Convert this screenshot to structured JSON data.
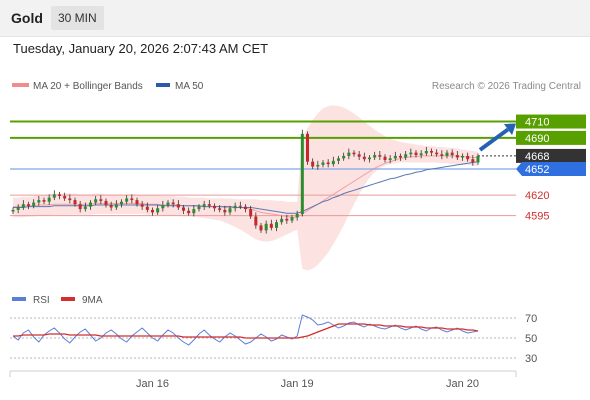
{
  "header": {
    "title": "Gold",
    "timeframe": "30 MIN"
  },
  "timestamp": "Tuesday, January 20, 2026 2:07:43 AM CET",
  "legend": {
    "ma20": "MA 20 + Bollinger Bands",
    "ma50": "MA 50",
    "credit": "Research © 2026 Trading Central",
    "rsi": "RSI",
    "ma9": "9MA"
  },
  "colors": {
    "resistance": "#57a000",
    "support": "#2f6fe0",
    "sub_level": "#d32f2f",
    "price_tag": "#333333",
    "candle_up": "#2e8b2e",
    "candle_down": "#c62828",
    "bollinger": "#fde2e2",
    "ma50": "#5a78b5",
    "rsi": "#5b7fd6",
    "ma9": "#d32f2f",
    "arrow": "#2563b0"
  },
  "chart_data": [
    {
      "type": "candlestick",
      "title": "Gold",
      "timeframe": "30 MIN",
      "ylim": [
        4520,
        4740
      ],
      "x_ticks": [
        "Jan 16",
        "Jan 19",
        "Jan 20"
      ],
      "levels": [
        {
          "label": "4710",
          "value": 4710,
          "kind": "resistance"
        },
        {
          "label": "4690",
          "value": 4690,
          "kind": "resistance"
        },
        {
          "label": "4668",
          "value": 4668,
          "kind": "last"
        },
        {
          "label": "4652",
          "value": 4652,
          "kind": "support"
        },
        {
          "label": "4620",
          "value": 4620,
          "kind": "sub"
        },
        {
          "label": "4595",
          "value": 4595,
          "kind": "sub"
        }
      ],
      "last_price": 4668,
      "forecast_target": 4710,
      "series_close": [
        4602,
        4605,
        4609,
        4607,
        4611,
        4614,
        4612,
        4617,
        4621,
        4619,
        4616,
        4614,
        4609,
        4603,
        4606,
        4611,
        4615,
        4613,
        4608,
        4605,
        4609,
        4612,
        4616,
        4614,
        4609,
        4606,
        4602,
        4599,
        4604,
        4608,
        4611,
        4609,
        4605,
        4601,
        4598,
        4603,
        4606,
        4609,
        4607,
        4604,
        4602,
        4599,
        4604,
        4607,
        4606,
        4603,
        4594,
        4583,
        4577,
        4585,
        4580,
        4587,
        4591,
        4589,
        4593,
        4597,
        4695,
        4661,
        4655,
        4657,
        4660,
        4658,
        4662,
        4665,
        4668,
        4672,
        4670,
        4667,
        4664,
        4666,
        4669,
        4667,
        4663,
        4665,
        4668,
        4666,
        4670,
        4672,
        4669,
        4671,
        4674,
        4672,
        4670,
        4668,
        4672,
        4669,
        4666,
        4668,
        4664,
        4660,
        4668
      ],
      "ma50": [
        4605,
        4605,
        4605,
        4606,
        4606,
        4606,
        4606,
        4606,
        4607,
        4607,
        4607,
        4607,
        4607,
        4607,
        4607,
        4607,
        4608,
        4608,
        4608,
        4608,
        4608,
        4608,
        4608,
        4608,
        4608,
        4608,
        4608,
        4608,
        4608,
        4607,
        4607,
        4607,
        4607,
        4607,
        4607,
        4607,
        4607,
        4606,
        4606,
        4606,
        4606,
        4606,
        4606,
        4605,
        4605,
        4605,
        4605,
        4604,
        4603,
        4602,
        4601,
        4600,
        4599,
        4598,
        4598,
        4598,
        4600,
        4603,
        4606,
        4609,
        4612,
        4614,
        4617,
        4619,
        4622,
        4624,
        4626,
        4628,
        4630,
        4632,
        4634,
        4636,
        4638,
        4640,
        4641,
        4643,
        4645,
        4646,
        4648,
        4649,
        4651,
        4652,
        4653,
        4654,
        4655,
        4656,
        4657,
        4658,
        4659,
        4660,
        4661
      ],
      "ma20": [
        4606,
        4606,
        4607,
        4607,
        4607,
        4608,
        4608,
        4608,
        4609,
        4609,
        4609,
        4609,
        4609,
        4609,
        4609,
        4609,
        4610,
        4610,
        4610,
        4610,
        4610,
        4610,
        4610,
        4610,
        4610,
        4610,
        4609,
        4609,
        4609,
        4608,
        4608,
        4608,
        4608,
        4607,
        4607,
        4607,
        4606,
        4606,
        4606,
        4606,
        4606,
        4605,
        4605,
        4605,
        4605,
        4604,
        4603,
        4601,
        4599,
        4598,
        4597,
        4596,
        4595,
        4594,
        4593,
        4593,
        4597,
        4601,
        4605,
        4609,
        4613,
        4617,
        4621,
        4625,
        4629,
        4633,
        4637,
        4641,
        4645,
        4649,
        4653,
        4656,
        4659,
        4661,
        4663,
        4665,
        4666,
        4667,
        4667,
        4668,
        4668,
        4668,
        4668,
        4668,
        4668,
        4668,
        4668,
        4667,
        4667,
        4666,
        4666
      ],
      "bb_upper": [
        4617,
        4617,
        4618,
        4618,
        4619,
        4620,
        4620,
        4621,
        4622,
        4622,
        4622,
        4622,
        4622,
        4621,
        4621,
        4621,
        4622,
        4622,
        4621,
        4621,
        4621,
        4621,
        4621,
        4621,
        4621,
        4620,
        4620,
        4620,
        4620,
        4619,
        4619,
        4619,
        4618,
        4618,
        4617,
        4617,
        4617,
        4617,
        4616,
        4616,
        4616,
        4616,
        4616,
        4615,
        4615,
        4615,
        4615,
        4615,
        4614,
        4614,
        4614,
        4613,
        4613,
        4612,
        4612,
        4612,
        4690,
        4702,
        4712,
        4720,
        4726,
        4729,
        4730,
        4729,
        4727,
        4724,
        4720,
        4715,
        4710,
        4705,
        4700,
        4696,
        4692,
        4689,
        4687,
        4685,
        4684,
        4683,
        4682,
        4681,
        4680,
        4680,
        4679,
        4679,
        4678,
        4678,
        4677,
        4676,
        4675,
        4674,
        4673
      ],
      "bb_lower": [
        4593,
        4593,
        4593,
        4594,
        4594,
        4595,
        4595,
        4595,
        4596,
        4596,
        4596,
        4596,
        4596,
        4596,
        4596,
        4596,
        4597,
        4597,
        4597,
        4597,
        4597,
        4597,
        4597,
        4597,
        4597,
        4597,
        4596,
        4596,
        4596,
        4595,
        4595,
        4595,
        4595,
        4594,
        4594,
        4594,
        4593,
        4592,
        4591,
        4590,
        4589,
        4587,
        4584,
        4581,
        4578,
        4574,
        4570,
        4566,
        4564,
        4563,
        4564,
        4566,
        4569,
        4572,
        4575,
        4578,
        4530,
        4528,
        4530,
        4535,
        4542,
        4550,
        4560,
        4571,
        4583,
        4596,
        4609,
        4621,
        4632,
        4641,
        4648,
        4653,
        4656,
        4658,
        4659,
        4660,
        4660,
        4660,
        4660,
        4660,
        4660,
        4660,
        4660,
        4659,
        4659,
        4658,
        4658,
        4657,
        4657,
        4656,
        4656
      ]
    },
    {
      "type": "line",
      "title": "RSI",
      "ylim": [
        20,
        80
      ],
      "y_ticks": [
        70,
        50,
        30
      ],
      "series": [
        {
          "name": "RSI",
          "values": [
            52,
            48,
            55,
            58,
            51,
            46,
            53,
            57,
            60,
            55,
            49,
            45,
            51,
            56,
            59,
            53,
            47,
            50,
            55,
            58,
            54,
            49,
            46,
            52,
            56,
            60,
            55,
            50,
            47,
            53,
            58,
            55,
            50,
            46,
            43,
            48,
            54,
            58,
            53,
            49,
            46,
            51,
            55,
            52,
            48,
            44,
            46,
            50,
            54,
            51,
            47,
            49,
            53,
            51,
            49,
            52,
            73,
            71,
            68,
            63,
            64,
            66,
            63,
            60,
            62,
            65,
            66,
            63,
            61,
            64,
            62,
            60,
            59,
            61,
            63,
            60,
            58,
            60,
            62,
            59,
            57,
            60,
            61,
            58,
            56,
            58,
            60,
            57,
            55,
            56,
            57
          ]
        },
        {
          "name": "9MA",
          "values": [
            52,
            52,
            53,
            53,
            53,
            53,
            53,
            54,
            54,
            54,
            54,
            53,
            53,
            53,
            53,
            53,
            53,
            52,
            52,
            52,
            52,
            52,
            52,
            52,
            52,
            52,
            52,
            52,
            52,
            52,
            52,
            52,
            52,
            51,
            51,
            51,
            51,
            51,
            51,
            51,
            51,
            51,
            51,
            51,
            51,
            50,
            50,
            50,
            50,
            50,
            50,
            50,
            50,
            50,
            50,
            50,
            51,
            52,
            54,
            56,
            58,
            60,
            62,
            64,
            64,
            64,
            64,
            64,
            64,
            63,
            63,
            63,
            62,
            62,
            62,
            62,
            61,
            61,
            61,
            61,
            60,
            60,
            60,
            60,
            59,
            59,
            59,
            59,
            58,
            58,
            57
          ]
        }
      ]
    }
  ]
}
